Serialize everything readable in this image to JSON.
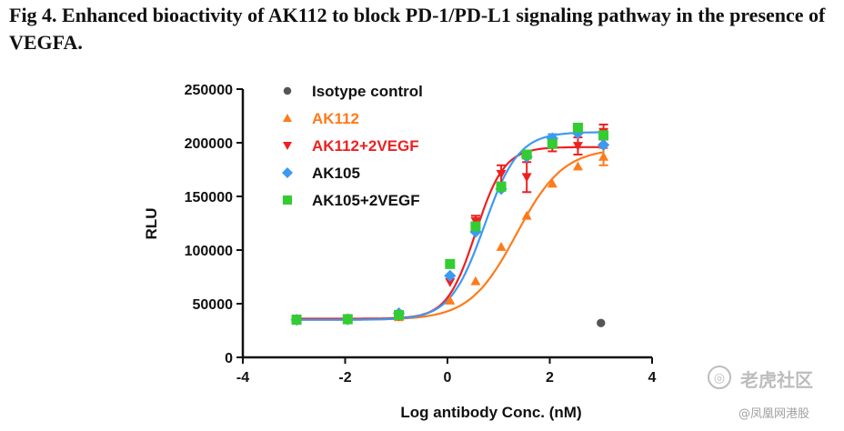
{
  "figure": {
    "title": "Fig 4. Enhanced bioactivity of AK112 to block PD-1/PD-L1 signaling pathway in the presence of VEGFA."
  },
  "chart_data": {
    "type": "scatter",
    "title": "",
    "xlabel": "Log antibody Conc. (nM)",
    "ylabel": "RLU",
    "xlim": [
      -4,
      4
    ],
    "ylim": [
      0,
      250000
    ],
    "xticks": [
      "-4",
      "-2",
      "0",
      "2",
      "4"
    ],
    "yticks": [
      "0",
      "50000",
      "100000",
      "150000",
      "200000",
      "250000"
    ],
    "legend_position": "top-left",
    "grid": false,
    "fit_curves": true,
    "series": [
      {
        "name": "Isotype control",
        "color": "#555555",
        "marker": "circle",
        "points": [
          {
            "x": 3.0,
            "y": 32000
          }
        ],
        "curve": null
      },
      {
        "name": "AK112",
        "color": "#ff7a1a",
        "marker": "triangle-up",
        "points": [
          {
            "x": -2.95,
            "y": 35000
          },
          {
            "x": -1.95,
            "y": 35500
          },
          {
            "x": -0.95,
            "y": 37500
          },
          {
            "x": 0.05,
            "y": 53000
          },
          {
            "x": 0.55,
            "y": 71000
          },
          {
            "x": 1.05,
            "y": 103000
          },
          {
            "x": 1.55,
            "y": 132000
          },
          {
            "x": 2.05,
            "y": 162000
          },
          {
            "x": 2.55,
            "y": 178000
          },
          {
            "x": 3.05,
            "y": 187000
          }
        ],
        "errors": [
          0,
          0,
          0,
          0,
          0,
          0,
          0,
          0,
          0,
          8000
        ],
        "curve": {
          "bottom": 35000,
          "top": 195000,
          "logEC50": 1.35,
          "hill": 0.95
        }
      },
      {
        "name": "AK112+2VEGF",
        "color": "#ee2020",
        "marker": "triangle-down",
        "points": [
          {
            "x": -2.95,
            "y": 36000
          },
          {
            "x": -1.95,
            "y": 36500
          },
          {
            "x": -0.95,
            "y": 38500
          },
          {
            "x": 0.05,
            "y": 70000
          },
          {
            "x": 0.55,
            "y": 127000
          },
          {
            "x": 1.05,
            "y": 171000
          },
          {
            "x": 1.55,
            "y": 168000
          },
          {
            "x": 2.05,
            "y": 197000
          },
          {
            "x": 2.55,
            "y": 197000
          },
          {
            "x": 3.05,
            "y": 210000
          }
        ],
        "errors": [
          0,
          0,
          0,
          0,
          5000,
          8000,
          14000,
          5000,
          8000,
          7000
        ],
        "curve": {
          "bottom": 36000,
          "top": 196000,
          "logEC50": 0.55,
          "hill": 1.55
        }
      },
      {
        "name": "AK105",
        "color": "#3d9af0",
        "marker": "diamond",
        "points": [
          {
            "x": -2.95,
            "y": 35000
          },
          {
            "x": -1.95,
            "y": 35500
          },
          {
            "x": -0.95,
            "y": 41000
          },
          {
            "x": 0.05,
            "y": 76000
          },
          {
            "x": 0.55,
            "y": 117000
          },
          {
            "x": 1.05,
            "y": 157000
          },
          {
            "x": 1.55,
            "y": 187000
          },
          {
            "x": 2.05,
            "y": 204000
          },
          {
            "x": 2.55,
            "y": 209000
          },
          {
            "x": 3.05,
            "y": 198000
          }
        ],
        "errors": [
          0,
          0,
          0,
          0,
          0,
          0,
          0,
          4000,
          0,
          0
        ],
        "curve": {
          "bottom": 35000,
          "top": 210000,
          "logEC50": 0.72,
          "hill": 1.3
        }
      },
      {
        "name": "AK105+2VEGF",
        "color": "#33cc33",
        "marker": "square",
        "points": [
          {
            "x": -2.95,
            "y": 35000
          },
          {
            "x": -1.95,
            "y": 35500
          },
          {
            "x": -0.95,
            "y": 39500
          },
          {
            "x": 0.05,
            "y": 87000
          },
          {
            "x": 0.55,
            "y": 122000
          },
          {
            "x": 1.05,
            "y": 159000
          },
          {
            "x": 1.55,
            "y": 189000
          },
          {
            "x": 2.05,
            "y": 199000
          },
          {
            "x": 2.55,
            "y": 214000
          },
          {
            "x": 3.05,
            "y": 207000
          }
        ],
        "errors": [
          0,
          0,
          0,
          0,
          0,
          0,
          0,
          0,
          0,
          0
        ],
        "curve": null
      }
    ]
  },
  "watermark": {
    "name": "老虎社区",
    "sub": "@凤凰网港股"
  }
}
